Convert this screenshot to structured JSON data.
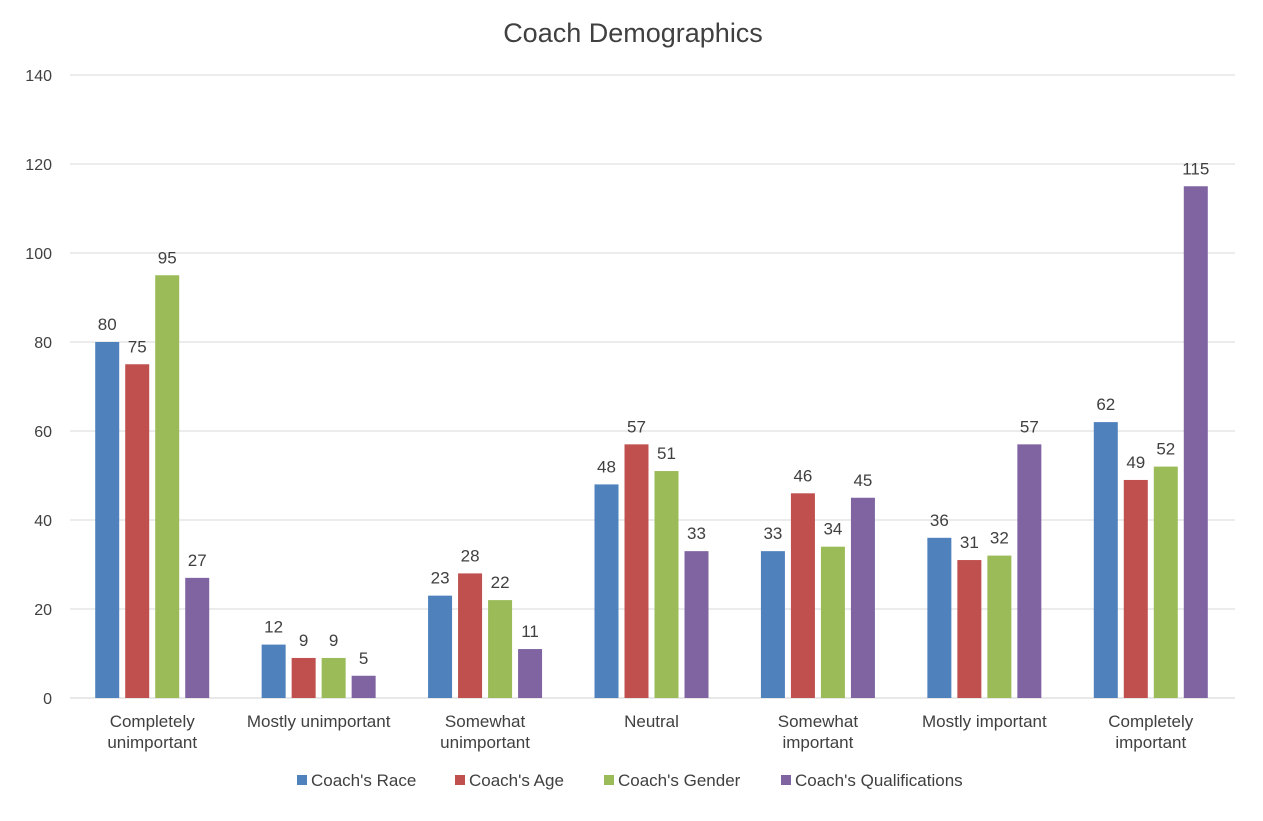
{
  "chart_data": {
    "type": "bar",
    "title": "Coach Demographics",
    "xlabel": "",
    "ylabel": "",
    "ylim": [
      0,
      140
    ],
    "yticks": [
      0,
      20,
      40,
      60,
      80,
      100,
      120,
      140
    ],
    "grid": true,
    "legend_position": "bottom",
    "categories": [
      [
        "Completely",
        "unimportant"
      ],
      [
        "Mostly unimportant"
      ],
      [
        "Somewhat",
        "unimportant"
      ],
      [
        "Neutral"
      ],
      [
        "Somewhat",
        "important"
      ],
      [
        "Mostly important"
      ],
      [
        "Completely",
        "important"
      ]
    ],
    "series": [
      {
        "name": "Coach's Race",
        "color": "#4f81bd",
        "values": [
          80,
          12,
          23,
          48,
          33,
          36,
          62
        ]
      },
      {
        "name": "Coach's Age",
        "color": "#c0504d",
        "values": [
          75,
          9,
          28,
          57,
          46,
          31,
          49
        ]
      },
      {
        "name": "Coach's Gender",
        "color": "#9bbb59",
        "values": [
          95,
          9,
          22,
          51,
          34,
          32,
          52
        ]
      },
      {
        "name": "Coach's Qualifications",
        "color": "#8064a2",
        "values": [
          27,
          5,
          11,
          33,
          45,
          57,
          115
        ]
      }
    ]
  }
}
